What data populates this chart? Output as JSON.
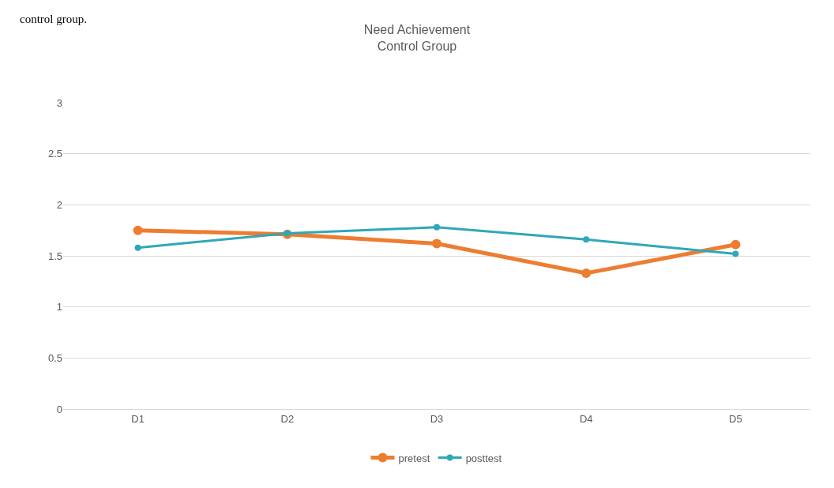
{
  "chart_data": {
    "type": "line",
    "title": "Need Achievement\nControl Group",
    "annotations": [
      "control group."
    ],
    "categories": [
      "D1",
      "D2",
      "D3",
      "D4",
      "D5"
    ],
    "series": [
      {
        "name": "pretest",
        "color": "#ed7d31",
        "values": [
          1.75,
          1.71,
          1.62,
          1.33,
          1.61
        ]
      },
      {
        "name": "posttest",
        "color": "#2ea8b8",
        "values": [
          1.58,
          1.72,
          1.78,
          1.66,
          1.52
        ]
      }
    ],
    "ylim": [
      0,
      3
    ],
    "yticks": [
      0,
      0.5,
      1,
      1.5,
      2,
      2.5,
      3
    ],
    "grid": "y",
    "legend": "bottom",
    "marker": "circle",
    "line_style": "solid"
  }
}
